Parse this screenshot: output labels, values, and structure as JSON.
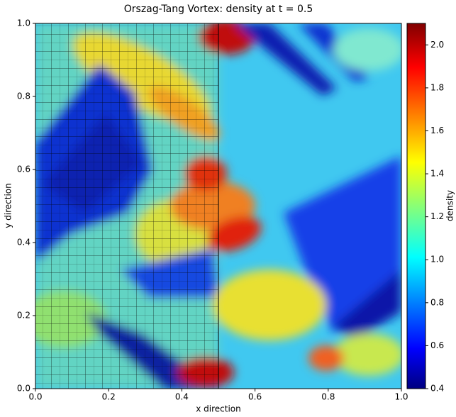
{
  "chart_data": {
    "type": "heatmap",
    "title": "Orszag-Tang Vortex: density at t = 0.5",
    "xlabel": "x direction",
    "ylabel": "y direction",
    "xlim": [
      0,
      1
    ],
    "ylim": [
      0,
      1
    ],
    "xticks": [
      {
        "value": 0,
        "label": "0.0"
      },
      {
        "value": 0.2,
        "label": "0.2"
      },
      {
        "value": 0.4,
        "label": "0.4"
      },
      {
        "value": 0.6,
        "label": "0.6"
      },
      {
        "value": 0.8,
        "label": "0.8"
      },
      {
        "value": 1,
        "label": "1.0"
      }
    ],
    "yticks": [
      {
        "value": 0,
        "label": "0.0"
      },
      {
        "value": 0.2,
        "label": "0.2"
      },
      {
        "value": 0.4,
        "label": "0.4"
      },
      {
        "value": 0.6,
        "label": "0.6"
      },
      {
        "value": 0.8,
        "label": "0.8"
      },
      {
        "value": 1,
        "label": "1.0"
      }
    ],
    "colorbar": {
      "label": "density",
      "lim": [
        0.4,
        2.1
      ],
      "ticks": [
        0.4,
        0.6,
        0.8,
        {
          "value": 1,
          "label": "1.0"
        },
        1.2,
        1.4,
        1.6,
        1.8,
        {
          "value": 2,
          "label": "2.0"
        }
      ]
    }
  }
}
